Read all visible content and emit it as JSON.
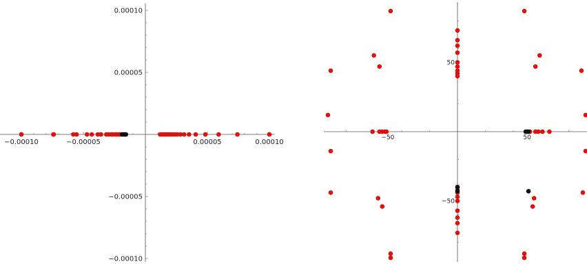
{
  "chart_data": [
    {
      "type": "scatter",
      "title": "",
      "xlabel": "",
      "ylabel": "",
      "xlim": [
        -0.0001,
        0.0001
      ],
      "ylim": [
        -0.0001,
        0.0001
      ],
      "grid": false,
      "x_ticks": [
        -0.0001,
        -5e-05,
        5e-05,
        0.0001
      ],
      "x_tick_labels": [
        "−0.00010",
        "−0.00005",
        "0.00005",
        "0.00010"
      ],
      "y_ticks": [
        0.0001,
        5e-05,
        -5e-05,
        -0.0001
      ],
      "y_tick_labels": [
        "0.00010",
        "0.00005",
        "−0.00005",
        "−0.00010"
      ],
      "series": [
        {
          "color": "#dd1111",
          "x": [
            -0.0001,
            -7.42e-05,
            -7.39e-05,
            -5.81e-05,
            -5.55e-05,
            -4.71e-05,
            -4.32e-05,
            -3.83e-05,
            -3.58e-05,
            -3.15e-05,
            -2.95e-05,
            -2.74e-05,
            -2.62e-05,
            -2.42e-05,
            -2.32e-05,
            -2.16e-05,
            -2.02e-05,
            1.19e-05,
            1.32e-05,
            1.45e-05,
            1.58e-05,
            1.72e-05,
            1.85e-05,
            1.99e-05,
            2.18e-05,
            2.37e-05,
            2.58e-05,
            2.84e-05,
            3.13e-05,
            3.52e-05,
            4.06e-05,
            4.84e-05,
            5.91e-05,
            7.42e-05,
            0.0001
          ],
          "y": [
            0,
            0,
            0,
            0,
            0,
            0,
            0,
            0,
            0,
            0,
            0,
            0,
            0,
            0,
            0,
            0,
            0,
            0,
            0,
            0,
            0,
            0,
            0,
            0,
            0,
            0,
            0,
            0,
            0,
            0,
            0,
            0,
            0,
            0,
            0
          ]
        },
        {
          "color": "#111111",
          "x": [
            -1.88e-05,
            -1.76e-05,
            -1.66e-05,
            -1.57e-05
          ],
          "y": [
            0,
            0,
            0,
            0
          ]
        }
      ]
    },
    {
      "type": "scatter",
      "title": "",
      "xlabel": "",
      "ylabel": "",
      "xlim": [
        -92,
        92
      ],
      "ylim": [
        -92,
        92
      ],
      "grid": false,
      "x_ticks": [
        -50,
        50
      ],
      "x_tick_labels": [
        "−50",
        "50"
      ],
      "y_ticks": [
        50,
        -50
      ],
      "y_tick_labels": [
        "50",
        "−50"
      ],
      "series": [
        {
          "color": "#dd1111",
          "x": [
            -48,
            48,
            -91,
            89,
            -93,
            92,
            -91,
            92,
            -91,
            90,
            -48,
            48,
            -48,
            48,
            -61,
            -56,
            -54,
            -52,
            -51,
            52,
            56,
            58,
            61,
            66,
            -60,
            59,
            -56,
            56,
            -57,
            55,
            -54,
            54,
            0,
            0,
            0,
            0,
            0,
            0,
            0,
            0,
            0,
            0,
            0,
            0,
            0,
            0,
            0,
            0,
            0,
            0
          ],
          "y": [
            87,
            87,
            44,
            44,
            12,
            12,
            -14,
            -14,
            -44,
            -44,
            -88,
            -88,
            -91,
            -91,
            0,
            0,
            0,
            0,
            0,
            0,
            0,
            0,
            0,
            0,
            55,
            55,
            47,
            47,
            -48,
            -48,
            -54,
            -54,
            73,
            66,
            62,
            57,
            50,
            47,
            44,
            42,
            40,
            -40,
            -42,
            -44,
            -47,
            -50,
            -57,
            -62,
            -66,
            -73
          ]
        },
        {
          "color": "#111111",
          "x": [
            49,
            50,
            51,
            51,
            0,
            0
          ],
          "y": [
            0,
            0,
            0,
            -43,
            -40,
            -43
          ]
        }
      ]
    }
  ]
}
